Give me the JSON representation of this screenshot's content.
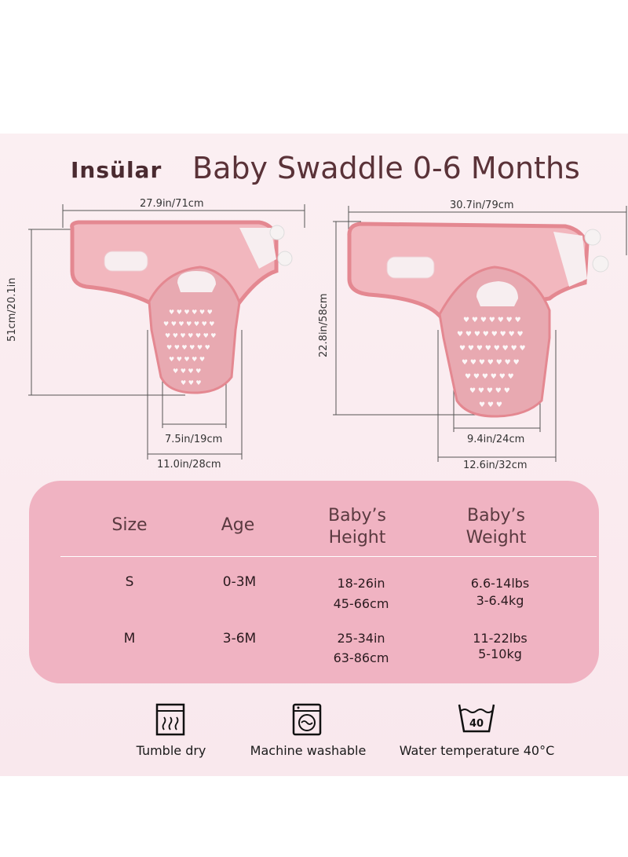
{
  "brand": "Insülar",
  "title": "Baby Swaddle 0-6 Months",
  "small_swaddle": {
    "width": "27.9in/71cm",
    "height": "51cm/20.1in",
    "bottom_inner": "7.5in/19cm",
    "bottom_outer": "11.0in/28cm"
  },
  "large_swaddle": {
    "width": "30.7in/79cm",
    "height": "22.8in/58cm",
    "bottom_inner": "9.4in/24cm",
    "bottom_outer": "12.6in/32cm"
  },
  "table": {
    "headers": [
      "Size",
      "Age",
      "Baby’s\nHeight",
      "Baby’s\nWeight"
    ],
    "rows": [
      {
        "size": "S",
        "age": "0-3M",
        "height_in": "18-26in",
        "height_cm": "45-66cm",
        "weight_lbs": "6.6-14lbs",
        "weight_kg": "3-6.4kg"
      },
      {
        "size": "M",
        "age": "3-6M",
        "height_in": "25-34in",
        "height_cm": "63-86cm",
        "weight_lbs": "11-22lbs",
        "weight_kg": "5-10kg"
      }
    ]
  },
  "care": [
    {
      "label": "Tumble dry",
      "icon": "tumble-dry-icon"
    },
    {
      "label": "Machine washable",
      "icon": "machine-wash-icon"
    },
    {
      "label": "Water temperature 40°C",
      "icon": "wash-temperature-icon",
      "temp": "40"
    }
  ],
  "colors": {
    "panel": "#fbeff2",
    "table": "#f0b3c2",
    "swaddle_top": "#f2b7be",
    "swaddle_body": "#e8a9b1",
    "trim": "#e48891"
  }
}
